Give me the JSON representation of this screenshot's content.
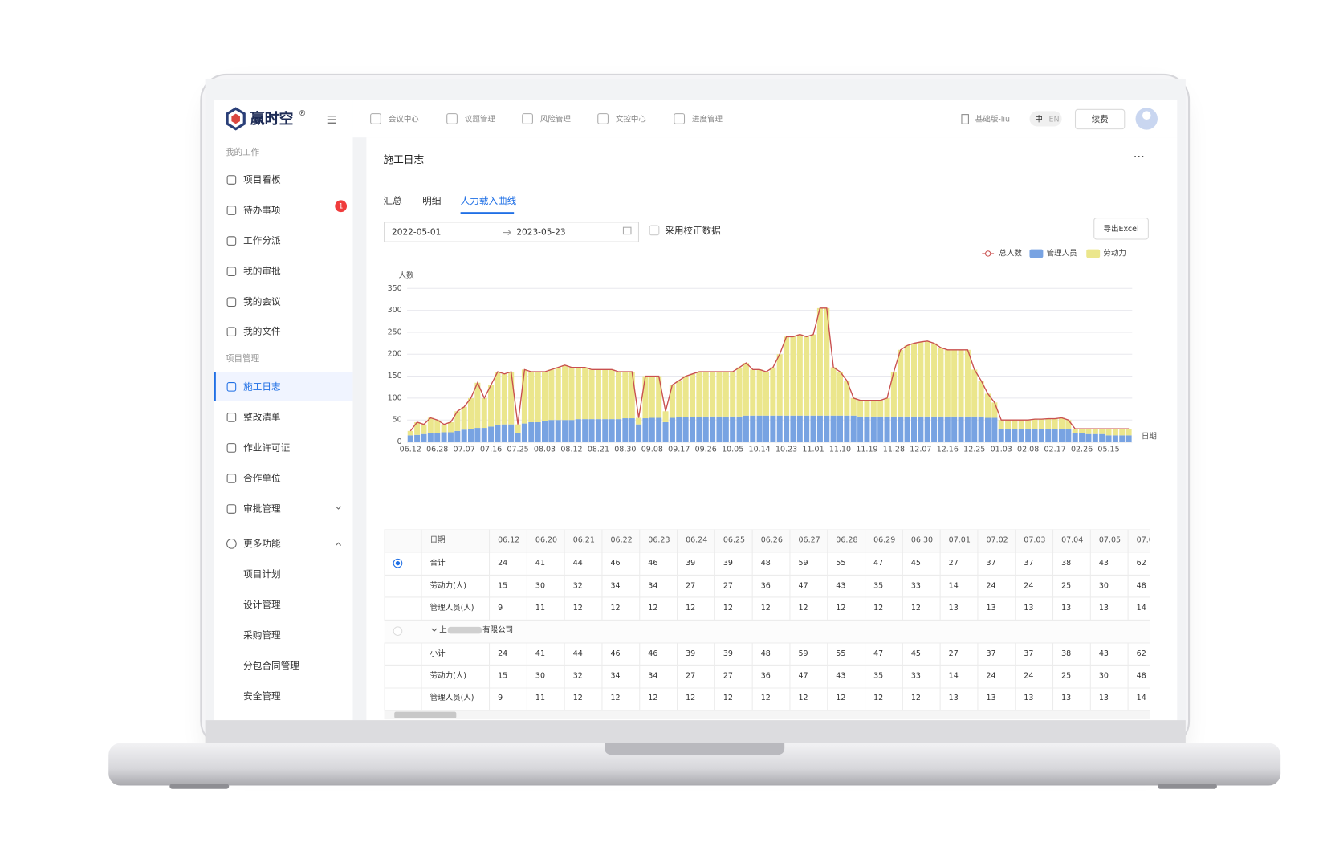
{
  "sidebar": {
    "logo": "赢时空",
    "registered": "®",
    "groups": [
      {
        "title": "我的工作",
        "items": [
          "项目看板",
          "待办事项",
          "工作分派",
          "我的审批",
          "我的会议",
          "我的文件"
        ]
      },
      {
        "title": "项目管理",
        "items": [
          "施工日志",
          "整改清单",
          "作业许可证",
          "合作单位",
          "审批管理"
        ]
      }
    ],
    "more": "更多功能",
    "more_items": [
      "项目计划",
      "设计管理",
      "采购管理",
      "分包合同管理",
      "安全管理"
    ],
    "badge": 1
  },
  "topnav": {
    "items": [
      "会议中心",
      "议题管理",
      "风险管理",
      "文控中心",
      "进度管理"
    ],
    "account": "基础版-liu",
    "lang": [
      "中",
      "EN"
    ],
    "renew": "续费"
  },
  "page": {
    "title": "施工日志",
    "more": "···",
    "tabs": [
      "汇总",
      "明细",
      "人力载入曲线"
    ],
    "start": "2022-05-01",
    "end": "2023-05-23",
    "checkbox": "采用校正数据",
    "export": "导出Excel"
  },
  "chart_data": {
    "type": "bar",
    "stacked": true,
    "y_label": "人数",
    "x_label": "日期",
    "ylim": [
      0,
      350
    ],
    "yticks": [
      0,
      50,
      100,
      150,
      200,
      250,
      300,
      350
    ],
    "grid": true,
    "legend": "top-right",
    "categories": [
      "06.12",
      null,
      null,
      null,
      "06.28",
      null,
      null,
      null,
      "07.07",
      null,
      null,
      null,
      "07.16",
      null,
      null,
      null,
      "07.25",
      null,
      null,
      null,
      "08.03",
      null,
      null,
      null,
      "08.12",
      null,
      null,
      null,
      "08.21",
      null,
      null,
      null,
      "08.30",
      null,
      null,
      null,
      "09.08",
      null,
      null,
      null,
      "09.17",
      null,
      null,
      null,
      "09.26",
      null,
      null,
      null,
      "10.05",
      null,
      null,
      null,
      "10.14",
      null,
      null,
      null,
      "10.23",
      null,
      null,
      null,
      "11.01",
      null,
      null,
      null,
      "11.10",
      null,
      null,
      null,
      "11.19",
      null,
      null,
      null,
      "11.28",
      null,
      null,
      null,
      "12.07",
      null,
      null,
      null,
      "12.16",
      null,
      null,
      null,
      "12.25",
      null,
      null,
      null,
      "01.03",
      null,
      null,
      null,
      "02.08",
      null,
      null,
      null,
      "02.17",
      null,
      null,
      null,
      "02.26",
      null,
      null,
      null,
      "05.15",
      null,
      null,
      null
    ],
    "series": [
      {
        "name": "总人数",
        "type": "line",
        "color": "#c9504f",
        "values": [
          25,
          45,
          40,
          55,
          50,
          40,
          45,
          70,
          80,
          100,
          135,
          100,
          130,
          160,
          155,
          160,
          40,
          165,
          160,
          160,
          160,
          165,
          170,
          175,
          170,
          170,
          170,
          165,
          165,
          165,
          165,
          160,
          160,
          160,
          55,
          150,
          150,
          150,
          70,
          130,
          140,
          150,
          155,
          160,
          160,
          160,
          160,
          160,
          160,
          170,
          180,
          165,
          165,
          160,
          170,
          200,
          240,
          240,
          245,
          240,
          245,
          305,
          305,
          170,
          160,
          140,
          100,
          95,
          95,
          95,
          95,
          100,
          160,
          210,
          220,
          225,
          228,
          230,
          225,
          215,
          210,
          210,
          210,
          210,
          165,
          140,
          110,
          90,
          50,
          50,
          50,
          50,
          50,
          52,
          52,
          53,
          53,
          55,
          50,
          30,
          30,
          30,
          30,
          30,
          30,
          30,
          30,
          30
        ]
      },
      {
        "name": "管理人员",
        "type": "bar",
        "color": "#78a3e2",
        "values": [
          15,
          16,
          18,
          20,
          20,
          22,
          22,
          25,
          28,
          30,
          32,
          32,
          35,
          38,
          40,
          40,
          20,
          42,
          45,
          45,
          48,
          50,
          50,
          50,
          50,
          52,
          52,
          52,
          52,
          52,
          52,
          52,
          54,
          54,
          40,
          54,
          55,
          55,
          45,
          55,
          56,
          56,
          56,
          56,
          58,
          58,
          58,
          58,
          58,
          58,
          60,
          60,
          60,
          60,
          60,
          60,
          60,
          60,
          60,
          60,
          60,
          60,
          60,
          60,
          60,
          60,
          60,
          58,
          58,
          58,
          58,
          58,
          58,
          58,
          58,
          58,
          58,
          58,
          58,
          58,
          58,
          58,
          58,
          58,
          58,
          58,
          55,
          55,
          30,
          30,
          30,
          30,
          30,
          30,
          30,
          30,
          30,
          30,
          30,
          20,
          20,
          18,
          18,
          18,
          15,
          15,
          15,
          15
        ]
      },
      {
        "name": "劳动力",
        "type": "bar",
        "color": "#ebe68c",
        "values": [
          10,
          29,
          22,
          35,
          30,
          18,
          23,
          45,
          52,
          70,
          103,
          68,
          95,
          122,
          115,
          120,
          20,
          123,
          115,
          115,
          112,
          115,
          120,
          125,
          120,
          118,
          118,
          113,
          113,
          113,
          113,
          108,
          106,
          106,
          15,
          96,
          95,
          95,
          25,
          75,
          84,
          94,
          99,
          104,
          102,
          102,
          102,
          102,
          102,
          112,
          120,
          105,
          105,
          100,
          110,
          140,
          180,
          180,
          185,
          180,
          185,
          245,
          245,
          110,
          100,
          80,
          40,
          37,
          37,
          37,
          37,
          42,
          102,
          152,
          162,
          167,
          170,
          172,
          167,
          157,
          152,
          152,
          152,
          152,
          107,
          82,
          55,
          35,
          20,
          20,
          20,
          20,
          20,
          22,
          22,
          23,
          23,
          25,
          20,
          10,
          10,
          12,
          12,
          12,
          15,
          15,
          15,
          15
        ]
      }
    ]
  },
  "table": {
    "header": [
      "日期",
      "06.12",
      "06.20",
      "06.21",
      "06.22",
      "06.23",
      "06.24",
      "06.25",
      "06.26",
      "06.27",
      "06.28",
      "06.29",
      "06.30",
      "07.01",
      "07.02",
      "07.03",
      "07.04",
      "07.05",
      "07.0"
    ],
    "rows": [
      [
        "合计",
        24,
        41,
        44,
        46,
        46,
        39,
        39,
        48,
        59,
        55,
        47,
        45,
        27,
        37,
        37,
        38,
        43,
        62
      ],
      [
        "劳动力(人)",
        15,
        30,
        32,
        34,
        34,
        27,
        27,
        36,
        47,
        43,
        35,
        33,
        14,
        24,
        24,
        25,
        30,
        48
      ],
      [
        "管理人员(人)",
        9,
        11,
        12,
        12,
        12,
        12,
        12,
        12,
        12,
        12,
        12,
        12,
        13,
        13,
        13,
        13,
        13,
        14
      ]
    ],
    "group": {
      "prefix": "上",
      "suffix": "有限公司"
    },
    "sub_rows": [
      [
        "小计",
        24,
        41,
        44,
        46,
        46,
        39,
        39,
        48,
        59,
        55,
        47,
        45,
        27,
        37,
        37,
        38,
        43,
        62
      ],
      [
        "劳动力(人)",
        15,
        30,
        32,
        34,
        34,
        27,
        27,
        36,
        47,
        43,
        35,
        33,
        14,
        24,
        24,
        25,
        30,
        48
      ],
      [
        "管理人员(人)",
        9,
        11,
        12,
        12,
        12,
        12,
        12,
        12,
        12,
        12,
        12,
        12,
        13,
        13,
        13,
        13,
        13,
        14
      ]
    ]
  }
}
